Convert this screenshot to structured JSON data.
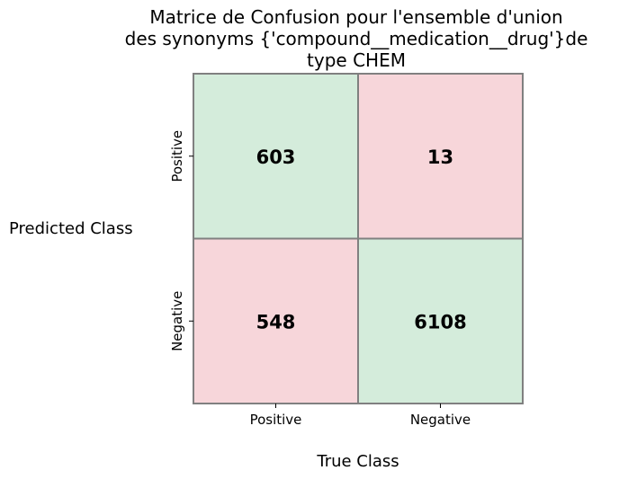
{
  "chart_data": {
    "type": "heatmap",
    "title_lines": [
      "Matrice de Confusion pour l'ensemble d'union",
      "des synonyms {'compound__medication__drug'}de",
      "type  CHEM"
    ],
    "xlabel": "True Class",
    "ylabel": "Predicted Class",
    "x_categories": [
      "Positive",
      "Negative"
    ],
    "y_categories": [
      "Positive",
      "Negative"
    ],
    "values": [
      [
        603,
        13
      ],
      [
        548,
        6108
      ]
    ],
    "colors": {
      "correct": "#d4ecdb",
      "incorrect": "#f7d6da",
      "cell_border": "#808080"
    }
  }
}
